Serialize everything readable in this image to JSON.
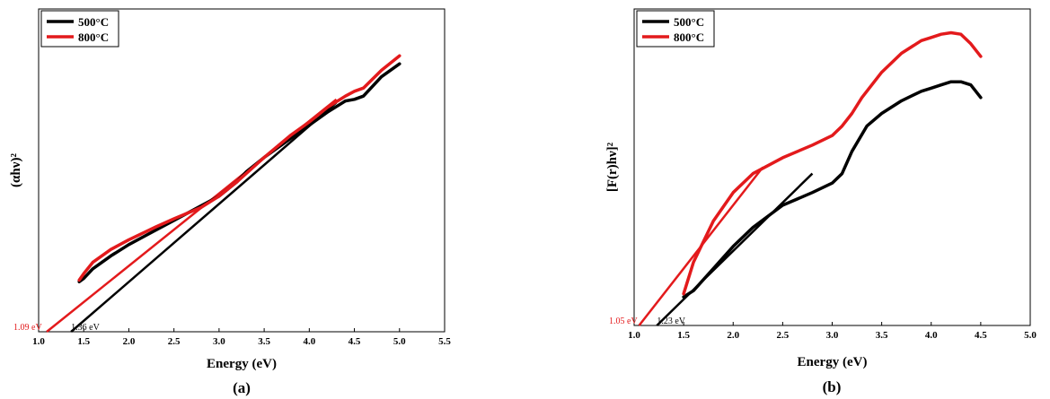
{
  "chart_data": [
    {
      "type": "line",
      "panel_label": "(a)",
      "title": "",
      "xlabel": "Energy (eV)",
      "ylabel": "(αhν)²",
      "xlim": [
        1.0,
        5.5
      ],
      "ylim": [
        0,
        1
      ],
      "xticks": [
        "1.0",
        "1.5",
        "2.0",
        "2.5",
        "3.0",
        "3.5",
        "4.0",
        "4.5",
        "5.0",
        "5.5"
      ],
      "legend": {
        "placement": "top-left",
        "entries": [
          "500°C",
          "800°C"
        ]
      },
      "series": [
        {
          "name": "500°C",
          "color": "#000000",
          "x": [
            1.45,
            1.5,
            1.6,
            1.8,
            2.0,
            2.2,
            2.5,
            2.8,
            3.0,
            3.2,
            3.3,
            3.5,
            3.8,
            4.0,
            4.2,
            4.4,
            4.5,
            4.6,
            4.7,
            4.8,
            5.0
          ],
          "y": [
            0.155,
            0.165,
            0.195,
            0.235,
            0.27,
            0.3,
            0.345,
            0.39,
            0.42,
            0.465,
            0.495,
            0.54,
            0.6,
            0.64,
            0.68,
            0.715,
            0.72,
            0.73,
            0.76,
            0.79,
            0.83
          ]
        },
        {
          "name": "800°C",
          "color": "#e31a1c",
          "x": [
            1.45,
            1.5,
            1.6,
            1.8,
            2.0,
            2.3,
            2.5,
            2.8,
            3.0,
            3.2,
            3.5,
            3.8,
            4.0,
            4.2,
            4.4,
            4.5,
            4.6,
            4.8,
            5.0
          ],
          "y": [
            0.16,
            0.18,
            0.215,
            0.255,
            0.285,
            0.325,
            0.35,
            0.385,
            0.42,
            0.465,
            0.54,
            0.61,
            0.65,
            0.695,
            0.73,
            0.745,
            0.755,
            0.81,
            0.855
          ]
        }
      ],
      "fit_lines": [
        {
          "color": "#000000",
          "x": [
            1.36,
            4.3
          ],
          "y": [
            0.0,
            0.71
          ]
        },
        {
          "color": "#e31a1c",
          "x": [
            1.09,
            4.3
          ],
          "y": [
            0.0,
            0.72
          ]
        }
      ],
      "annotations": [
        {
          "text": "1.09 eV",
          "color": "#e31a1c",
          "x": 1.0,
          "y": 0.0
        },
        {
          "text": "1.36 eV",
          "color": "#000000",
          "x": 1.36,
          "y": 0.0
        }
      ]
    },
    {
      "type": "line",
      "panel_label": "(b)",
      "title": "",
      "xlabel": "Energy (eV)",
      "ylabel": "[F(r)hν]²",
      "xlim": [
        1.0,
        5.0
      ],
      "ylim": [
        0,
        1
      ],
      "xticks": [
        "1.0",
        "1.5",
        "2.0",
        "2.5",
        "3.0",
        "3.5",
        "4.0",
        "4.5",
        "5.0"
      ],
      "legend": {
        "placement": "top-left",
        "entries": [
          "500°C",
          "800°C"
        ]
      },
      "series": [
        {
          "name": "500°C",
          "color": "#000000",
          "x": [
            1.5,
            1.6,
            1.8,
            2.0,
            2.2,
            2.5,
            2.8,
            3.0,
            3.1,
            3.2,
            3.35,
            3.5,
            3.7,
            3.9,
            4.0,
            4.1,
            4.2,
            4.3,
            4.4,
            4.5
          ],
          "y": [
            0.09,
            0.11,
            0.18,
            0.25,
            0.31,
            0.38,
            0.42,
            0.45,
            0.48,
            0.55,
            0.63,
            0.67,
            0.71,
            0.74,
            0.75,
            0.76,
            0.77,
            0.77,
            0.76,
            0.72
          ]
        },
        {
          "name": "800°C",
          "color": "#e31a1c",
          "x": [
            1.5,
            1.6,
            1.8,
            2.0,
            2.2,
            2.5,
            2.8,
            3.0,
            3.1,
            3.2,
            3.3,
            3.5,
            3.7,
            3.9,
            4.0,
            4.1,
            4.2,
            4.3,
            4.4,
            4.5
          ],
          "y": [
            0.1,
            0.2,
            0.33,
            0.42,
            0.48,
            0.53,
            0.57,
            0.6,
            0.63,
            0.67,
            0.72,
            0.8,
            0.86,
            0.9,
            0.91,
            0.92,
            0.925,
            0.92,
            0.89,
            0.85
          ]
        }
      ],
      "fit_lines": [
        {
          "color": "#000000",
          "x": [
            1.23,
            2.8
          ],
          "y": [
            0.0,
            0.48
          ]
        },
        {
          "color": "#e31a1c",
          "x": [
            1.05,
            2.3
          ],
          "y": [
            0.0,
            0.5
          ]
        }
      ],
      "annotations": [
        {
          "text": "1.05 eV",
          "color": "#e31a1c",
          "x": 1.0,
          "y": 0.0
        },
        {
          "text": "1.23 eV",
          "color": "#000000",
          "x": 1.23,
          "y": 0.0
        }
      ]
    }
  ]
}
